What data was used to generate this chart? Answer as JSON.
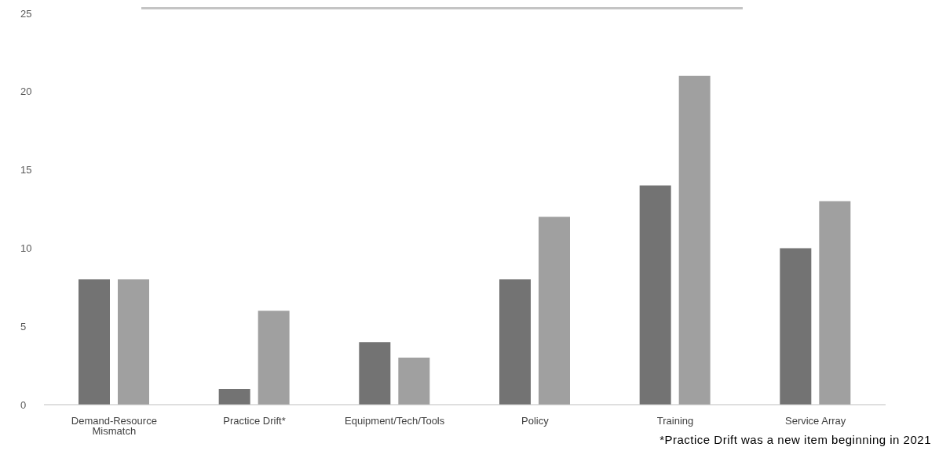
{
  "chart_data": {
    "type": "bar",
    "categories": [
      "Demand-Resource Mismatch",
      "Practice Drift*",
      "Equipment/Tech/Tools",
      "Policy",
      "Training",
      "Service Array"
    ],
    "series": [
      {
        "color": "#737373",
        "values": [
          8,
          1,
          4,
          8,
          14,
          10
        ]
      },
      {
        "color": "#a0a0a0",
        "values": [
          8,
          6,
          3,
          12,
          21,
          13
        ]
      }
    ],
    "ylim": [
      0,
      25
    ],
    "yticks": [
      0,
      5,
      10,
      15,
      20,
      25
    ],
    "annotations": [
      "*Practice Drift was a new item beginning in 2021"
    ]
  }
}
